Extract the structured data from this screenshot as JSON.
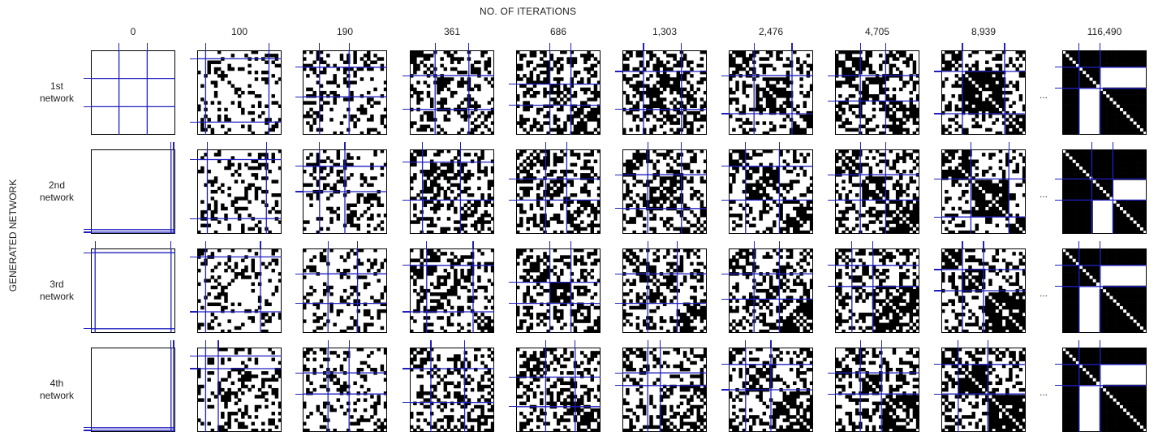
{
  "x_axis_title": "NO. OF ITERATIONS",
  "y_axis_title": "GENERATED NETWORK",
  "iterations": [
    "0",
    "100",
    "190",
    "361",
    "686",
    "1,303",
    "2,476",
    "4,705",
    "8,939",
    "116,490"
  ],
  "networks": [
    {
      "label": "1st\nnetwork"
    },
    {
      "label": "2nd\nnetwork"
    },
    {
      "label": "3rd\nnetwork"
    },
    {
      "label": "4th\nnetwork"
    }
  ],
  "ellipsis": "...",
  "colors": {
    "filled": "#000000",
    "empty": "#ffffff",
    "divider": "#1f1fbf",
    "border": "#000000"
  },
  "matrix": {
    "nodes": 25,
    "block_fractions": [
      [
        [
          0.333,
          0.667
        ],
        [
          0.1,
          0.85
        ],
        [
          0.2,
          0.55
        ],
        [
          0.3,
          0.7
        ],
        [
          0.4,
          0.65
        ],
        [
          0.25,
          0.7
        ],
        [
          0.3,
          0.75
        ],
        [
          0.3,
          0.6
        ],
        [
          0.25,
          0.75
        ],
        [
          0.2,
          0.45
        ]
      ],
      [
        [
          0.95,
          0.98
        ],
        [
          0.12,
          0.82
        ],
        [
          0.2,
          0.5
        ],
        [
          0.15,
          0.6
        ],
        [
          0.35,
          0.6
        ],
        [
          0.3,
          0.7
        ],
        [
          0.2,
          0.6
        ],
        [
          0.3,
          0.6
        ],
        [
          0.35,
          0.8
        ],
        [
          0.35,
          0.6
        ]
      ],
      [
        [
          0.05,
          0.95
        ],
        [
          0.1,
          0.75
        ],
        [
          0.3,
          0.65
        ],
        [
          0.2,
          0.75
        ],
        [
          0.4,
          0.65
        ],
        [
          0.3,
          0.65
        ],
        [
          0.3,
          0.6
        ],
        [
          0.2,
          0.45
        ],
        [
          0.25,
          0.5
        ],
        [
          0.2,
          0.45
        ]
      ],
      [
        [
          0.95,
          0.98
        ],
        [
          0.1,
          0.25
        ],
        [
          0.3,
          0.55
        ],
        [
          0.25,
          0.65
        ],
        [
          0.35,
          0.7
        ],
        [
          0.3,
          0.45
        ],
        [
          0.2,
          0.5
        ],
        [
          0.3,
          0.55
        ],
        [
          0.2,
          0.55
        ],
        [
          0.2,
          0.45
        ]
      ]
    ],
    "density": [
      0.0,
      0.22,
      0.3,
      0.42,
      0.5,
      0.55,
      0.62,
      0.7,
      0.78,
      0.85
    ]
  }
}
